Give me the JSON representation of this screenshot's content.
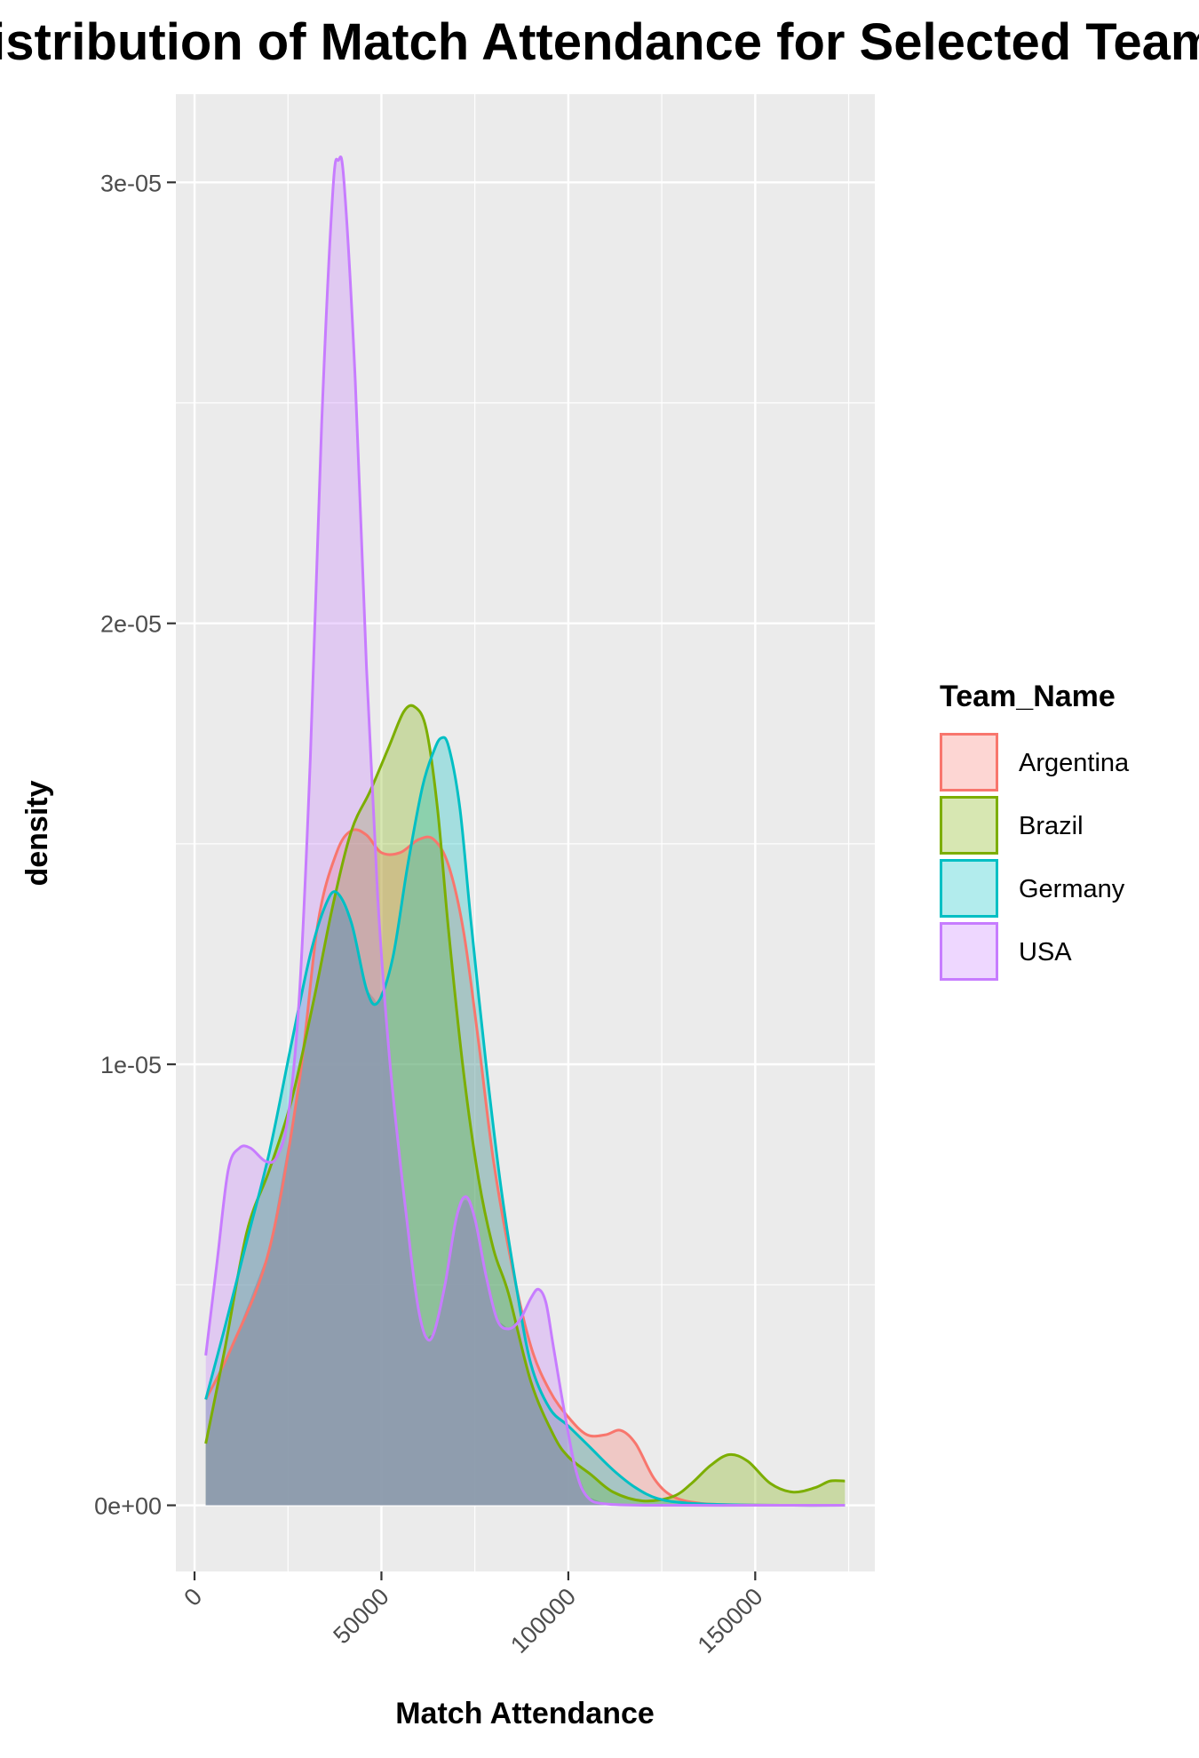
{
  "chart_data": {
    "type": "area",
    "title": "Distribution of Match Attendance for Selected Teams",
    "xlabel": "Match Attendance",
    "ylabel": "density",
    "xlim": [
      -5000,
      182000
    ],
    "ylim": [
      -1.5e-06,
      3.2e-05
    ],
    "x_ticks": [
      0,
      50000,
      100000,
      150000
    ],
    "x_tick_labels": [
      "0",
      "50000",
      "100000",
      "150000"
    ],
    "x_minor_ticks": [
      25000,
      75000,
      125000,
      175000
    ],
    "y_ticks": [
      0,
      1e-05,
      2e-05,
      3e-05
    ],
    "y_tick_labels": [
      "0e+00",
      "1e-05",
      "2e-05",
      "3e-05"
    ],
    "y_minor_ticks": [
      5e-06,
      1.5e-05,
      2.5e-05
    ],
    "grid": true,
    "fill_opacity": 0.3,
    "legend": {
      "title": "Team_Name",
      "position": "right"
    },
    "series": [
      {
        "name": "Argentina",
        "color": "#F8766D",
        "points": [
          [
            3000,
            2.4e-06
          ],
          [
            10000,
            3.6e-06
          ],
          [
            20000,
            5.8e-06
          ],
          [
            28000,
            9.6e-06
          ],
          [
            33000,
            1.32e-05
          ],
          [
            38000,
            1.48e-05
          ],
          [
            42000,
            1.53e-05
          ],
          [
            46000,
            1.52e-05
          ],
          [
            50000,
            1.48e-05
          ],
          [
            55000,
            1.48e-05
          ],
          [
            60000,
            1.51e-05
          ],
          [
            64000,
            1.51e-05
          ],
          [
            68000,
            1.45e-05
          ],
          [
            72000,
            1.3e-05
          ],
          [
            76000,
            1.05e-05
          ],
          [
            80000,
            7.8e-06
          ],
          [
            85000,
            5.4e-06
          ],
          [
            90000,
            3.6e-06
          ],
          [
            95000,
            2.6e-06
          ],
          [
            100000,
            2e-06
          ],
          [
            105000,
            1.6e-06
          ],
          [
            110000,
            1.6e-06
          ],
          [
            114000,
            1.7e-06
          ],
          [
            118000,
            1.4e-06
          ],
          [
            123000,
            6e-07
          ],
          [
            128000,
            2e-07
          ],
          [
            135000,
            5e-08
          ],
          [
            145000,
            1e-08
          ],
          [
            160000,
            0
          ],
          [
            174000,
            0
          ]
        ]
      },
      {
        "name": "Brazil",
        "color": "#7CAE00",
        "points": [
          [
            3000,
            1.4e-06
          ],
          [
            8000,
            3.5e-06
          ],
          [
            14000,
            6.2e-06
          ],
          [
            20000,
            7.6e-06
          ],
          [
            26000,
            9.2e-06
          ],
          [
            32000,
            1.15e-05
          ],
          [
            37000,
            1.36e-05
          ],
          [
            42000,
            1.53e-05
          ],
          [
            47000,
            1.62e-05
          ],
          [
            52000,
            1.72e-05
          ],
          [
            56000,
            1.8e-05
          ],
          [
            59000,
            1.81e-05
          ],
          [
            62000,
            1.76e-05
          ],
          [
            65000,
            1.58e-05
          ],
          [
            68000,
            1.3e-05
          ],
          [
            72000,
            9.8e-06
          ],
          [
            76000,
            7.4e-06
          ],
          [
            80000,
            5.8e-06
          ],
          [
            84000,
            4.8e-06
          ],
          [
            90000,
            2.8e-06
          ],
          [
            96000,
            1.6e-06
          ],
          [
            100000,
            1.1e-06
          ],
          [
            106000,
            7e-07
          ],
          [
            112000,
            3e-07
          ],
          [
            120000,
            1e-07
          ],
          [
            128000,
            2e-07
          ],
          [
            133000,
            5e-07
          ],
          [
            138000,
            9e-07
          ],
          [
            143000,
            1.15e-06
          ],
          [
            148000,
            1e-06
          ],
          [
            154000,
            5e-07
          ],
          [
            160000,
            3e-07
          ],
          [
            166000,
            4e-07
          ],
          [
            170000,
            5.5e-07
          ],
          [
            174000,
            5.5e-07
          ]
        ]
      },
      {
        "name": "Germany",
        "color": "#00BFC4",
        "points": [
          [
            3000,
            2.4e-06
          ],
          [
            8000,
            4e-06
          ],
          [
            14000,
            6e-06
          ],
          [
            20000,
            8e-06
          ],
          [
            26000,
            1.05e-05
          ],
          [
            31000,
            1.25e-05
          ],
          [
            35000,
            1.36e-05
          ],
          [
            38000,
            1.39e-05
          ],
          [
            42000,
            1.32e-05
          ],
          [
            46000,
            1.17e-05
          ],
          [
            49000,
            1.14e-05
          ],
          [
            53000,
            1.24e-05
          ],
          [
            57000,
            1.45e-05
          ],
          [
            61000,
            1.63e-05
          ],
          [
            64000,
            1.71e-05
          ],
          [
            66000,
            1.74e-05
          ],
          [
            68000,
            1.72e-05
          ],
          [
            71000,
            1.58e-05
          ],
          [
            74000,
            1.32e-05
          ],
          [
            78000,
            1e-05
          ],
          [
            82000,
            7.2e-06
          ],
          [
            86000,
            5e-06
          ],
          [
            90000,
            3.2e-06
          ],
          [
            95000,
            2.2e-06
          ],
          [
            100000,
            1.8e-06
          ],
          [
            106000,
            1.3e-06
          ],
          [
            112000,
            8e-07
          ],
          [
            118000,
            4e-07
          ],
          [
            124000,
            1.5e-07
          ],
          [
            132000,
            5e-08
          ],
          [
            145000,
            1e-08
          ],
          [
            160000,
            0
          ],
          [
            174000,
            0
          ]
        ]
      },
      {
        "name": "USA",
        "color": "#C77CFF",
        "points": [
          [
            3000,
            3.4e-06
          ],
          [
            6000,
            5.5e-06
          ],
          [
            9000,
            7.6e-06
          ],
          [
            12000,
            8.1e-06
          ],
          [
            15000,
            8.1e-06
          ],
          [
            19000,
            7.8e-06
          ],
          [
            22000,
            7.9e-06
          ],
          [
            25000,
            8.8e-06
          ],
          [
            28000,
            1.15e-05
          ],
          [
            31000,
            1.7e-05
          ],
          [
            34000,
            2.45e-05
          ],
          [
            37000,
            2.98e-05
          ],
          [
            38500,
            3.05e-05
          ],
          [
            40000,
            3e-05
          ],
          [
            43000,
            2.55e-05
          ],
          [
            46000,
            1.9e-05
          ],
          [
            49000,
            1.38e-05
          ],
          [
            52000,
            1.03e-05
          ],
          [
            55000,
            7.8e-06
          ],
          [
            58000,
            5.6e-06
          ],
          [
            60000,
            4.4e-06
          ],
          [
            62000,
            3.8e-06
          ],
          [
            64000,
            3.9e-06
          ],
          [
            67000,
            5e-06
          ],
          [
            70000,
            6.5e-06
          ],
          [
            72500,
            7e-06
          ],
          [
            75000,
            6.5e-06
          ],
          [
            78000,
            5.2e-06
          ],
          [
            81000,
            4.2e-06
          ],
          [
            84000,
            4e-06
          ],
          [
            87000,
            4.2e-06
          ],
          [
            90000,
            4.7e-06
          ],
          [
            92000,
            4.9e-06
          ],
          [
            94000,
            4.6e-06
          ],
          [
            96000,
            3.6e-06
          ],
          [
            99000,
            2.1e-06
          ],
          [
            102000,
            8e-07
          ],
          [
            105000,
            2e-07
          ],
          [
            110000,
            3e-08
          ],
          [
            125000,
            0
          ],
          [
            150000,
            0
          ],
          [
            174000,
            0
          ]
        ]
      }
    ],
    "overlap_fill_color": "#A0AABB"
  }
}
